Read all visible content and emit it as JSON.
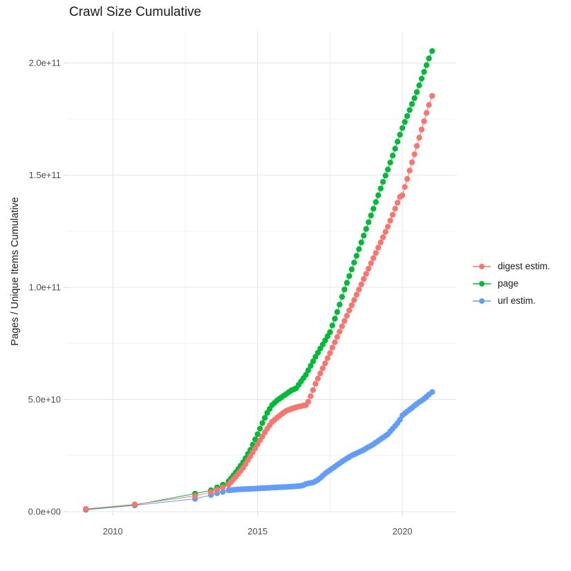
{
  "chart_data": {
    "type": "scatter",
    "title": "Crawl Size Cumulative",
    "xlabel": "",
    "ylabel": "Pages / Unique Items Cumulative",
    "value_unit": "1e9 (all series values are billions of pages / unique items)",
    "grid": true,
    "legend_position": "right",
    "x_axis": {
      "range": [
        2008.42,
        2021.86
      ],
      "tick_values": [
        2010,
        2015,
        2020
      ],
      "tick_labels": [
        "2010",
        "2015",
        "2020"
      ],
      "minor_tick_values": [
        2012.5,
        2017.5
      ]
    },
    "y_axis": {
      "range": [
        0,
        214.2
      ],
      "tick_values": [
        0,
        50,
        100,
        150,
        200
      ],
      "tick_labels": [
        "0.0e+00",
        "5.0e+10",
        "1.0e+11",
        "1.5e+11",
        "2.0e+11"
      ],
      "minor_tick_values": [
        25,
        75,
        125,
        175
      ]
    },
    "style": {
      "background": "#ffffff",
      "grid_major": "#e4e4e4",
      "grid_minor": "#f2f2f2",
      "tick_color": "#d4d4d4",
      "tick_label_color": "#4d4d4d",
      "text_color": "#1a1a1a"
    },
    "series": [
      {
        "name": "digest estim.",
        "color": "#F8766D",
        "points": [
          [
            2009.07,
            1.2
          ],
          [
            2010.76,
            3.2
          ],
          [
            2012.84,
            7.0
          ],
          [
            2013.39,
            8.7
          ],
          [
            2013.6,
            9.8
          ],
          [
            2013.8,
            10.8
          ],
          [
            2014.0,
            12.0
          ],
          [
            2014.083,
            13.2
          ],
          [
            2014.167,
            14.4
          ],
          [
            2014.25,
            15.6
          ],
          [
            2014.333,
            16.9
          ],
          [
            2014.417,
            18.2
          ],
          [
            2014.5,
            19.5
          ],
          [
            2014.583,
            21.2
          ],
          [
            2014.667,
            23.0
          ],
          [
            2014.75,
            24.7
          ],
          [
            2014.833,
            26.5
          ],
          [
            2014.917,
            28.2
          ],
          [
            2015.0,
            30.0
          ],
          [
            2015.083,
            31.8
          ],
          [
            2015.167,
            33.5
          ],
          [
            2015.25,
            35.3
          ],
          [
            2015.333,
            37.0
          ],
          [
            2015.417,
            38.5
          ],
          [
            2015.5,
            40.0
          ],
          [
            2015.583,
            40.9
          ],
          [
            2015.667,
            41.8
          ],
          [
            2015.75,
            42.7
          ],
          [
            2015.833,
            43.5
          ],
          [
            2015.917,
            44.3
          ],
          [
            2016.0,
            45.0
          ],
          [
            2016.083,
            45.4
          ],
          [
            2016.167,
            45.8
          ],
          [
            2016.25,
            46.2
          ],
          [
            2016.333,
            46.5
          ],
          [
            2016.417,
            46.8
          ],
          [
            2016.5,
            47.0
          ],
          [
            2016.583,
            47.3
          ],
          [
            2016.667,
            47.5
          ],
          [
            2016.75,
            49.0
          ],
          [
            2016.833,
            51.5
          ],
          [
            2016.917,
            54.2
          ],
          [
            2017.0,
            57.0
          ],
          [
            2017.083,
            59.3
          ],
          [
            2017.167,
            61.6
          ],
          [
            2017.25,
            63.9
          ],
          [
            2017.333,
            66.1
          ],
          [
            2017.417,
            68.4
          ],
          [
            2017.5,
            70.7
          ],
          [
            2017.583,
            73.1
          ],
          [
            2017.667,
            75.5
          ],
          [
            2017.75,
            77.9
          ],
          [
            2017.833,
            80.2
          ],
          [
            2017.917,
            82.6
          ],
          [
            2018.0,
            85.0
          ],
          [
            2018.083,
            87.3
          ],
          [
            2018.167,
            89.7
          ],
          [
            2018.25,
            92.0
          ],
          [
            2018.333,
            94.3
          ],
          [
            2018.417,
            96.7
          ],
          [
            2018.5,
            99.0
          ],
          [
            2018.583,
            101.3
          ],
          [
            2018.667,
            103.7
          ],
          [
            2018.75,
            106.0
          ],
          [
            2018.833,
            108.3
          ],
          [
            2018.917,
            110.7
          ],
          [
            2019.0,
            113.0
          ],
          [
            2019.083,
            115.3
          ],
          [
            2019.167,
            117.7
          ],
          [
            2019.25,
            120.0
          ],
          [
            2019.333,
            122.3
          ],
          [
            2019.417,
            124.7
          ],
          [
            2019.5,
            127.0
          ],
          [
            2019.583,
            129.7
          ],
          [
            2019.667,
            132.3
          ],
          [
            2019.75,
            135.0
          ],
          [
            2019.833,
            137.7
          ],
          [
            2019.917,
            140.3
          ],
          [
            2020.0,
            141.0
          ],
          [
            2020.083,
            144.7
          ],
          [
            2020.167,
            148.3
          ],
          [
            2020.25,
            152.0
          ],
          [
            2020.333,
            155.7
          ],
          [
            2020.417,
            159.3
          ],
          [
            2020.5,
            163.0
          ],
          [
            2020.583,
            166.7
          ],
          [
            2020.667,
            170.3
          ],
          [
            2020.75,
            174.0
          ],
          [
            2020.833,
            177.7
          ],
          [
            2020.917,
            181.3
          ],
          [
            2021.03,
            185.3
          ]
        ]
      },
      {
        "name": "page",
        "color": "#00BA38",
        "points": [
          [
            2009.07,
            1.0
          ],
          [
            2010.76,
            3.0
          ],
          [
            2012.84,
            8.0
          ],
          [
            2013.39,
            9.5
          ],
          [
            2013.6,
            10.8
          ],
          [
            2013.8,
            12.0
          ],
          [
            2014.0,
            13.5
          ],
          [
            2014.083,
            14.8
          ],
          [
            2014.167,
            16.2
          ],
          [
            2014.25,
            17.5
          ],
          [
            2014.333,
            19.0
          ],
          [
            2014.417,
            20.5
          ],
          [
            2014.5,
            22.0
          ],
          [
            2014.583,
            23.8
          ],
          [
            2014.667,
            25.7
          ],
          [
            2014.75,
            27.5
          ],
          [
            2014.833,
            29.8
          ],
          [
            2014.917,
            32.2
          ],
          [
            2015.0,
            34.5
          ],
          [
            2015.083,
            37.0
          ],
          [
            2015.167,
            39.5
          ],
          [
            2015.25,
            41.8
          ],
          [
            2015.333,
            44.0
          ],
          [
            2015.417,
            45.8
          ],
          [
            2015.5,
            47.5
          ],
          [
            2015.583,
            48.5
          ],
          [
            2015.667,
            49.5
          ],
          [
            2015.75,
            50.3
          ],
          [
            2015.833,
            51.0
          ],
          [
            2015.917,
            51.8
          ],
          [
            2016.0,
            52.5
          ],
          [
            2016.083,
            53.3
          ],
          [
            2016.167,
            54.0
          ],
          [
            2016.25,
            54.5
          ],
          [
            2016.333,
            55.0
          ],
          [
            2016.417,
            56.5
          ],
          [
            2016.5,
            58.0
          ],
          [
            2016.583,
            59.5
          ],
          [
            2016.667,
            61.0
          ],
          [
            2016.75,
            63.0
          ],
          [
            2016.833,
            65.0
          ],
          [
            2016.917,
            67.0
          ],
          [
            2017.0,
            69.0
          ],
          [
            2017.083,
            70.8
          ],
          [
            2017.167,
            72.7
          ],
          [
            2017.25,
            74.5
          ],
          [
            2017.333,
            76.3
          ],
          [
            2017.417,
            78.2
          ],
          [
            2017.5,
            80.0
          ],
          [
            2017.583,
            83.0
          ],
          [
            2017.667,
            86.0
          ],
          [
            2017.75,
            89.0
          ],
          [
            2017.833,
            92.3
          ],
          [
            2017.917,
            95.7
          ],
          [
            2018.0,
            99.0
          ],
          [
            2018.083,
            102.0
          ],
          [
            2018.167,
            105.0
          ],
          [
            2018.25,
            108.0
          ],
          [
            2018.333,
            111.0
          ],
          [
            2018.417,
            114.0
          ],
          [
            2018.5,
            117.0
          ],
          [
            2018.583,
            120.0
          ],
          [
            2018.667,
            123.0
          ],
          [
            2018.75,
            126.0
          ],
          [
            2018.833,
            129.0
          ],
          [
            2018.917,
            132.0
          ],
          [
            2019.0,
            135.0
          ],
          [
            2019.083,
            138.0
          ],
          [
            2019.167,
            141.0
          ],
          [
            2019.25,
            144.0
          ],
          [
            2019.333,
            147.0
          ],
          [
            2019.417,
            149.8
          ],
          [
            2019.5,
            152.5
          ],
          [
            2019.583,
            155.6
          ],
          [
            2019.667,
            158.7
          ],
          [
            2019.75,
            161.8
          ],
          [
            2019.833,
            164.9
          ],
          [
            2019.917,
            168.0
          ],
          [
            2020.0,
            171.0
          ],
          [
            2020.083,
            173.7
          ],
          [
            2020.167,
            176.3
          ],
          [
            2020.25,
            179.0
          ],
          [
            2020.333,
            181.7
          ],
          [
            2020.417,
            184.3
          ],
          [
            2020.5,
            187.0
          ],
          [
            2020.583,
            190.0
          ],
          [
            2020.667,
            193.0
          ],
          [
            2020.75,
            196.0
          ],
          [
            2020.833,
            199.0
          ],
          [
            2020.917,
            202.0
          ],
          [
            2021.03,
            205.3
          ]
        ]
      },
      {
        "name": "url estim.",
        "color": "#619CFF",
        "points": [
          [
            2009.07,
            0.8
          ],
          [
            2010.76,
            2.8
          ],
          [
            2012.84,
            5.7
          ],
          [
            2013.39,
            7.4
          ],
          [
            2013.6,
            8.2
          ],
          [
            2013.8,
            8.8
          ],
          [
            2014.0,
            9.5
          ],
          [
            2014.083,
            9.6
          ],
          [
            2014.167,
            9.7
          ],
          [
            2014.25,
            9.8
          ],
          [
            2014.333,
            9.9
          ],
          [
            2014.417,
            9.95
          ],
          [
            2014.5,
            10.0
          ],
          [
            2014.583,
            10.05
          ],
          [
            2014.667,
            10.1
          ],
          [
            2014.75,
            10.15
          ],
          [
            2014.833,
            10.2
          ],
          [
            2014.917,
            10.25
          ],
          [
            2015.0,
            10.3
          ],
          [
            2015.083,
            10.4
          ],
          [
            2015.167,
            10.45
          ],
          [
            2015.25,
            10.5
          ],
          [
            2015.333,
            10.55
          ],
          [
            2015.417,
            10.6
          ],
          [
            2015.5,
            10.7
          ],
          [
            2015.583,
            10.75
          ],
          [
            2015.667,
            10.8
          ],
          [
            2015.75,
            10.85
          ],
          [
            2015.833,
            10.9
          ],
          [
            2015.917,
            10.95
          ],
          [
            2016.0,
            11.0
          ],
          [
            2016.083,
            11.1
          ],
          [
            2016.167,
            11.15
          ],
          [
            2016.25,
            11.2
          ],
          [
            2016.333,
            11.3
          ],
          [
            2016.417,
            11.4
          ],
          [
            2016.5,
            11.5
          ],
          [
            2016.583,
            11.8
          ],
          [
            2016.667,
            12.3
          ],
          [
            2016.75,
            12.6
          ],
          [
            2016.833,
            12.8
          ],
          [
            2016.917,
            13.0
          ],
          [
            2017.0,
            13.5
          ],
          [
            2017.083,
            14.2
          ],
          [
            2017.167,
            15.0
          ],
          [
            2017.25,
            16.0
          ],
          [
            2017.333,
            17.0
          ],
          [
            2017.417,
            17.8
          ],
          [
            2017.5,
            18.5
          ],
          [
            2017.583,
            19.3
          ],
          [
            2017.667,
            20.0
          ],
          [
            2017.75,
            20.8
          ],
          [
            2017.833,
            21.5
          ],
          [
            2017.917,
            22.3
          ],
          [
            2018.0,
            23.0
          ],
          [
            2018.083,
            23.7
          ],
          [
            2018.167,
            24.3
          ],
          [
            2018.25,
            25.0
          ],
          [
            2018.333,
            25.5
          ],
          [
            2018.417,
            26.0
          ],
          [
            2018.5,
            26.5
          ],
          [
            2018.583,
            27.0
          ],
          [
            2018.667,
            27.5
          ],
          [
            2018.75,
            28.2
          ],
          [
            2018.833,
            28.8
          ],
          [
            2018.917,
            29.4
          ],
          [
            2019.0,
            30.0
          ],
          [
            2019.083,
            30.8
          ],
          [
            2019.167,
            31.5
          ],
          [
            2019.25,
            32.3
          ],
          [
            2019.333,
            33.0
          ],
          [
            2019.417,
            33.8
          ],
          [
            2019.5,
            34.5
          ],
          [
            2019.583,
            35.8
          ],
          [
            2019.667,
            37.0
          ],
          [
            2019.75,
            38.2
          ],
          [
            2019.833,
            39.5
          ],
          [
            2019.917,
            41.0
          ],
          [
            2020.0,
            42.9
          ],
          [
            2020.083,
            43.8
          ],
          [
            2020.167,
            44.7
          ],
          [
            2020.25,
            45.5
          ],
          [
            2020.333,
            46.3
          ],
          [
            2020.417,
            47.2
          ],
          [
            2020.5,
            48.0
          ],
          [
            2020.583,
            48.8
          ],
          [
            2020.667,
            49.5
          ],
          [
            2020.75,
            50.3
          ],
          [
            2020.833,
            51.2
          ],
          [
            2020.917,
            52.2
          ],
          [
            2021.03,
            53.3
          ]
        ]
      }
    ]
  },
  "legend": {
    "items": [
      {
        "label": "digest estim."
      },
      {
        "label": "page"
      },
      {
        "label": "url estim."
      }
    ]
  }
}
